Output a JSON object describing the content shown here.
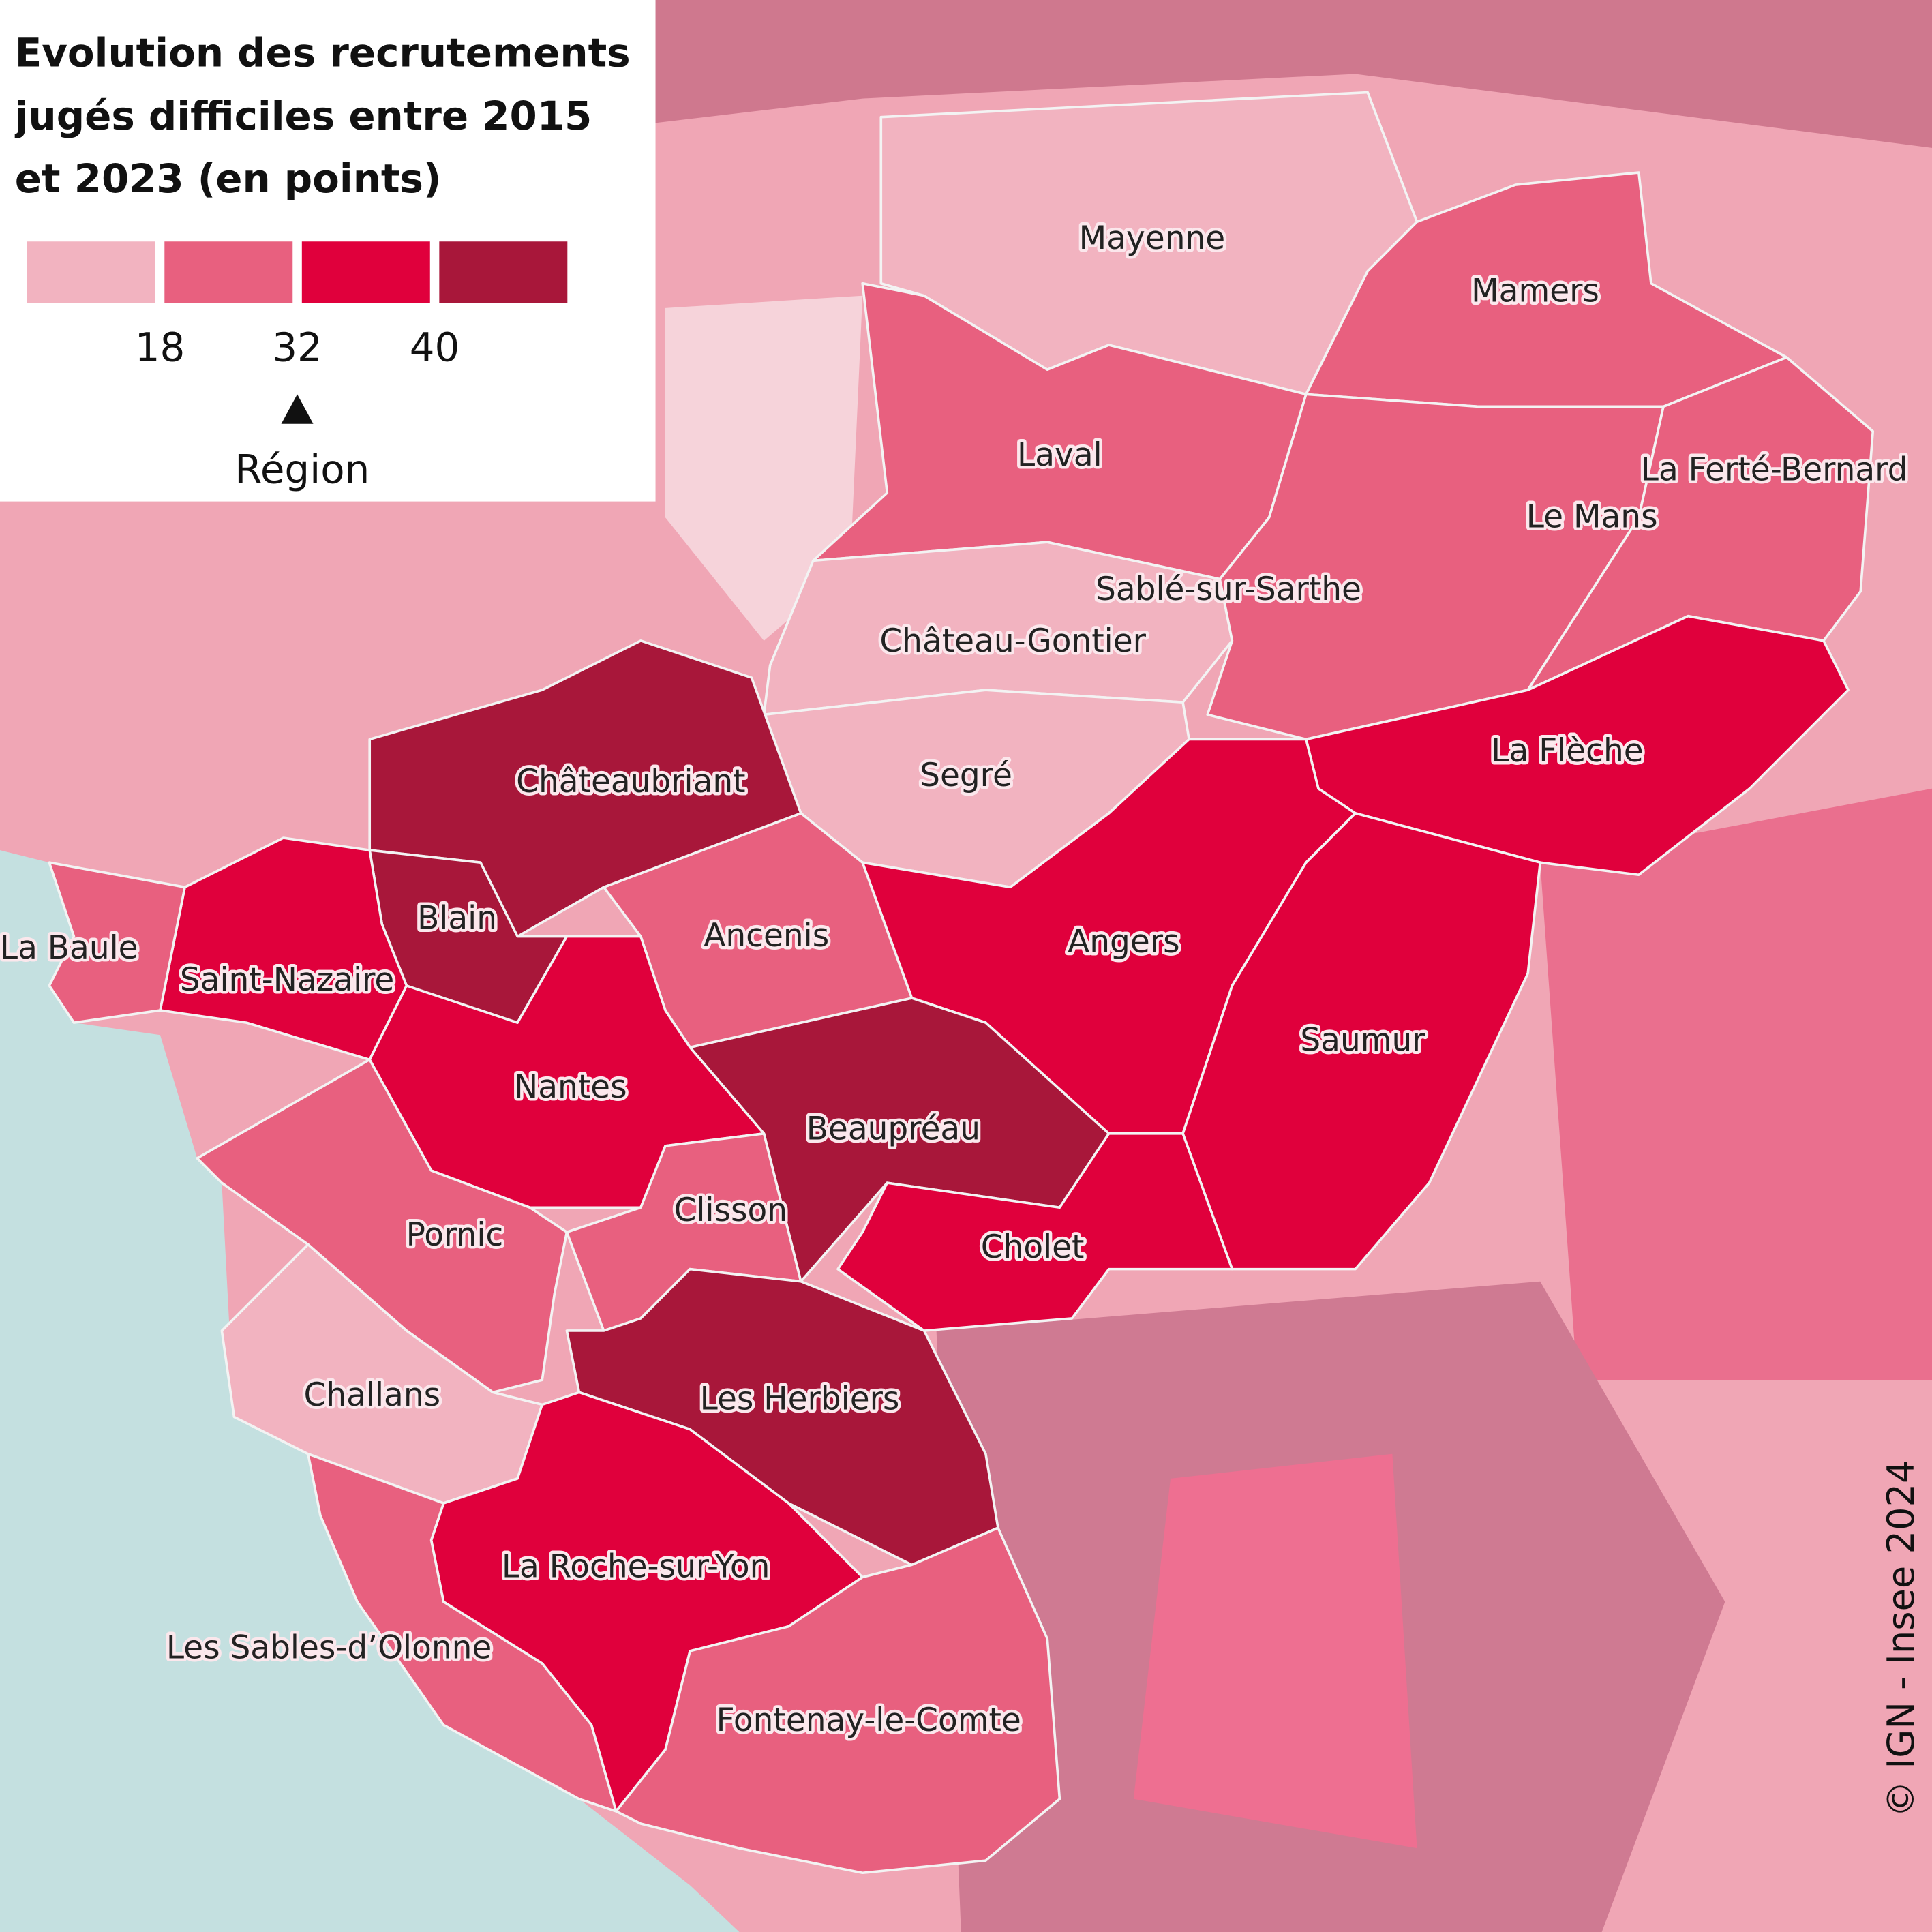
{
  "title": "Evolution des recrutements jugés difficiles entre 2015 et 2023 (en points)",
  "legend": {
    "colors": [
      "#f2b3c0",
      "#e8607f",
      "#e0003c",
      "#a8173a"
    ],
    "thresholds": [
      18,
      32,
      40
    ],
    "region_marker": {
      "value": 32,
      "label": "Région"
    }
  },
  "places": [
    {
      "name": "Mayenne",
      "class": 0
    },
    {
      "name": "Laval",
      "class": 1
    },
    {
      "name": "Château-Gontier",
      "class": 0
    },
    {
      "name": "Segré",
      "class": 0
    },
    {
      "name": "Mamers",
      "class": 1
    },
    {
      "name": "Le Mans",
      "class": 1
    },
    {
      "name": "La Ferté-Bernard",
      "class": 1
    },
    {
      "name": "Sablé-sur-Sarthe",
      "class": 1
    },
    {
      "name": "La Flèche",
      "class": 2
    },
    {
      "name": "Angers",
      "class": 2
    },
    {
      "name": "Saumur",
      "class": 2
    },
    {
      "name": "Beaupréau",
      "class": 3
    },
    {
      "name": "Cholet",
      "class": 2
    },
    {
      "name": "Ancenis",
      "class": 1
    },
    {
      "name": "Châteaubriant",
      "class": 3
    },
    {
      "name": "Blain",
      "class": 3
    },
    {
      "name": "Saint-Nazaire",
      "class": 2
    },
    {
      "name": "La Baule",
      "class": 1
    },
    {
      "name": "Nantes",
      "class": 2
    },
    {
      "name": "Pornic",
      "class": 1
    },
    {
      "name": "Clisson",
      "class": 1
    },
    {
      "name": "Challans",
      "class": 0
    },
    {
      "name": "Les Herbiers",
      "class": 3
    },
    {
      "name": "La Roche-sur-Yon",
      "class": 2
    },
    {
      "name": "Les Sables-d’Olonne",
      "class": 1
    },
    {
      "name": "Fontenay-le-Comte",
      "class": 1
    }
  ],
  "credit": "© IGN - Insee 2024"
}
